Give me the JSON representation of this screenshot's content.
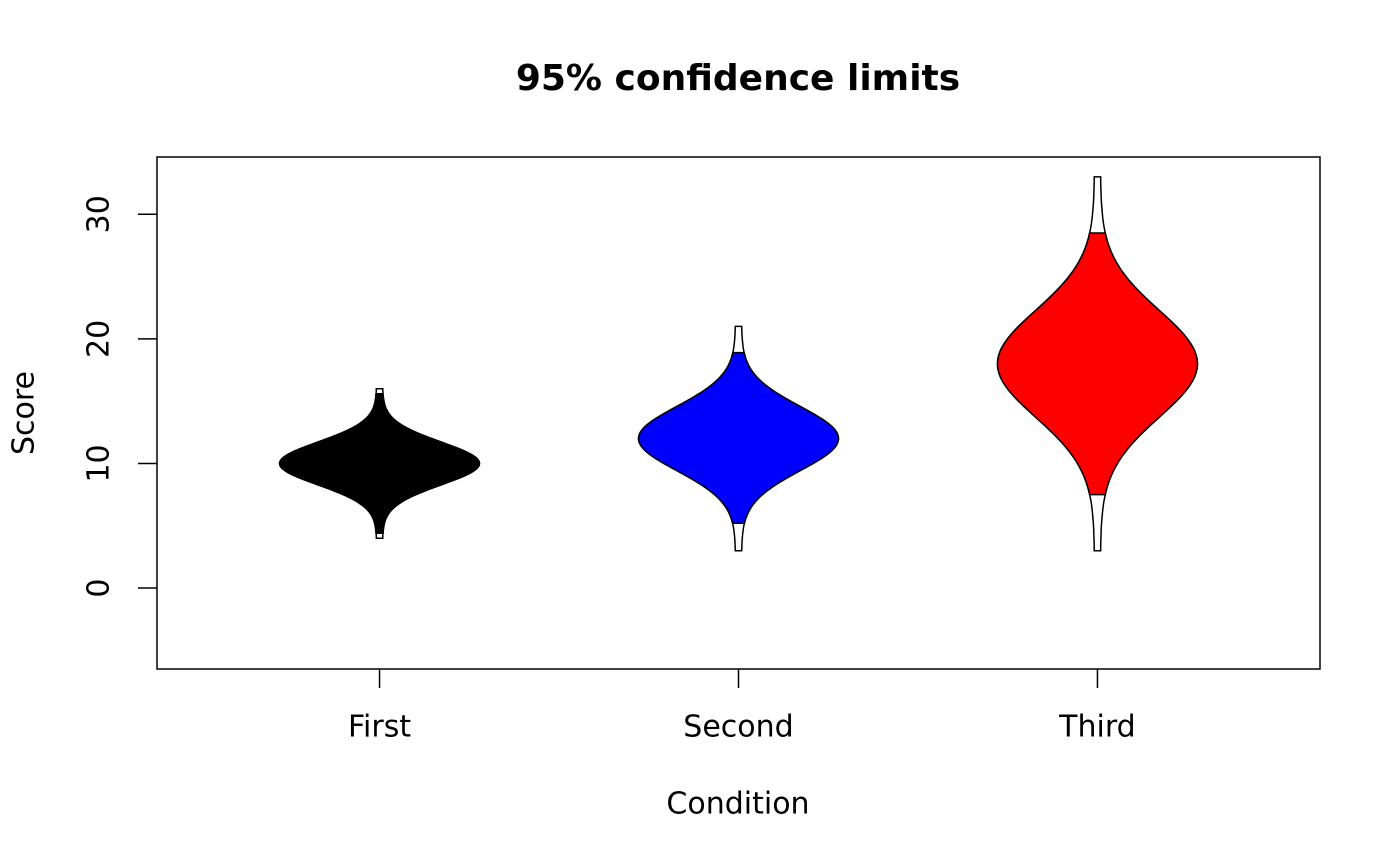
{
  "chart_data": {
    "type": "violin",
    "title": "95% confidence limits",
    "xlabel": "Condition",
    "ylabel": "Score",
    "categories": [
      "First",
      "Second",
      "Third"
    ],
    "violins": [
      {
        "min": 4,
        "max": 16,
        "center": 10,
        "ci_lower": 4.4,
        "ci_upper": 15.6,
        "color": "#000000"
      },
      {
        "min": 3,
        "max": 21,
        "center": 12,
        "ci_lower": 5.2,
        "ci_upper": 18.9,
        "color": "#0000ff"
      },
      {
        "min": 3,
        "max": 33,
        "center": 18,
        "ci_lower": 7.5,
        "ci_upper": 28.5,
        "color": "#ff0000"
      }
    ],
    "ylim": [
      -6.5,
      34.6
    ],
    "yticks": [
      0,
      10,
      20,
      30
    ]
  }
}
